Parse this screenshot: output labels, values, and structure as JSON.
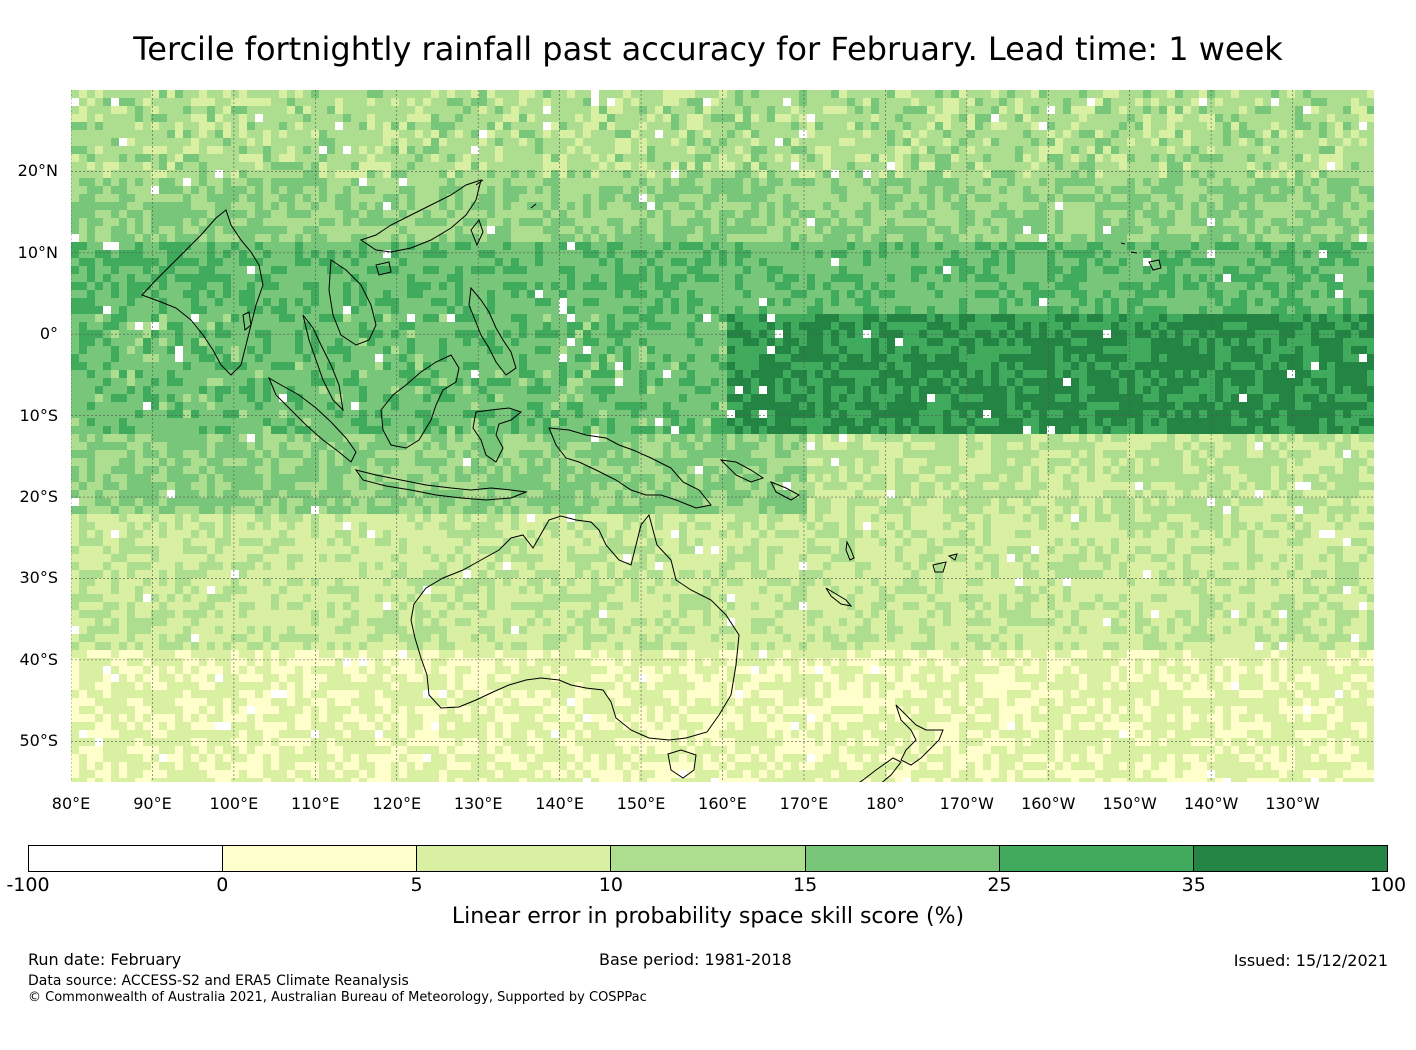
{
  "title": "Tercile fortnightly rainfall past accuracy for February. Lead time: 1 week",
  "map": {
    "lon_range": [
      80,
      240
    ],
    "lat_range": [
      -55,
      30
    ],
    "lat_ticks": [
      {
        "lat": 20,
        "label": "20°N"
      },
      {
        "lat": 10,
        "label": "10°N"
      },
      {
        "lat": 0,
        "label": "0°"
      },
      {
        "lat": -10,
        "label": "10°S"
      },
      {
        "lat": -20,
        "label": "20°S"
      },
      {
        "lat": -30,
        "label": "30°S"
      },
      {
        "lat": -40,
        "label": "40°S"
      },
      {
        "lat": -50,
        "label": "50°S"
      }
    ],
    "lon_ticks": [
      {
        "lon": 80,
        "label": "80°E"
      },
      {
        "lon": 90,
        "label": "90°E"
      },
      {
        "lon": 100,
        "label": "100°E"
      },
      {
        "lon": 110,
        "label": "110°E"
      },
      {
        "lon": 120,
        "label": "120°E"
      },
      {
        "lon": 130,
        "label": "130°E"
      },
      {
        "lon": 140,
        "label": "140°E"
      },
      {
        "lon": 150,
        "label": "150°E"
      },
      {
        "lon": 160,
        "label": "160°E"
      },
      {
        "lon": 170,
        "label": "170°E"
      },
      {
        "lon": 180,
        "label": "180°"
      },
      {
        "lon": 190,
        "label": "170°W"
      },
      {
        "lon": 200,
        "label": "160°W"
      },
      {
        "lon": 210,
        "label": "150°W"
      },
      {
        "lon": 220,
        "label": "140°W"
      },
      {
        "lon": 230,
        "label": "130°W"
      }
    ]
  },
  "colorbar": {
    "bounds": [
      "-100",
      "0",
      "5",
      "10",
      "15",
      "25",
      "35",
      "100"
    ],
    "colors": [
      "#ffffff",
      "#ffffcc",
      "#d9f0a3",
      "#addd8e",
      "#78c679",
      "#41ab5d",
      "#238443"
    ],
    "label": "Linear error in probability space skill score (%)"
  },
  "footer": {
    "run_date": "Run date: February",
    "base_period": "Base period: 1981-2018",
    "issued": "Issued: 15/12/2021",
    "data_source": "Data source: ACCESS-S2 and ERA5 Climate Reanalysis",
    "copyright": "© Commonwealth of Australia 2021, Australian Bureau of Meteorology, Supported by COSPPac"
  }
}
